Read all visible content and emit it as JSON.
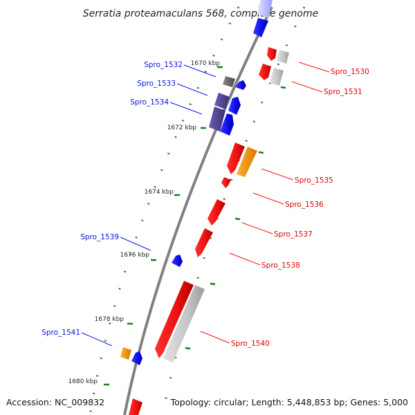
{
  "title": "Serratia proteamaculans 568, complete genome",
  "footer": {
    "accession": "Accession: NC_009832",
    "summary": "Topology: circular; Length: 5,448,853 bp; Genes: 5,000"
  },
  "ticks": [
    "1670 kbp",
    "1672 kbp",
    "1674 kbp",
    "1676 kbp",
    "1678 kbp",
    "1680 kbp"
  ],
  "genes_forward": [
    {
      "name": "Spro_1530",
      "color": "#ee1111"
    },
    {
      "name": "Spro_1531",
      "color": "#ee1111"
    },
    {
      "name": "Spro_1535",
      "color": "#ee1111"
    },
    {
      "name": "Spro_1536",
      "color": "#ee1111"
    },
    {
      "name": "Spro_1537",
      "color": "#ee1111"
    },
    {
      "name": "Spro_1538",
      "color": "#ee1111"
    },
    {
      "name": "Spro_1540",
      "color": "#ee1111"
    }
  ],
  "genes_reverse": [
    {
      "name": "Spro_1532",
      "color": "#0a10dd"
    },
    {
      "name": "Spro_1533",
      "color": "#0a10dd"
    },
    {
      "name": "Spro_1534",
      "color": "#0a10dd"
    },
    {
      "name": "Spro_1539",
      "color": "#0a10dd"
    },
    {
      "name": "Spro_1541",
      "color": "#0a10dd"
    }
  ],
  "legend_colors": {
    "forward_cds": "#ee1111",
    "reverse_cds": "#1010ee",
    "rna_or_other": "#ff9900",
    "orthologs_forward": "#bbbbbb",
    "orthologs_reverse": "#4a3d8c",
    "backbone": "#808080",
    "gc_dots": "#1a7a1a"
  }
}
